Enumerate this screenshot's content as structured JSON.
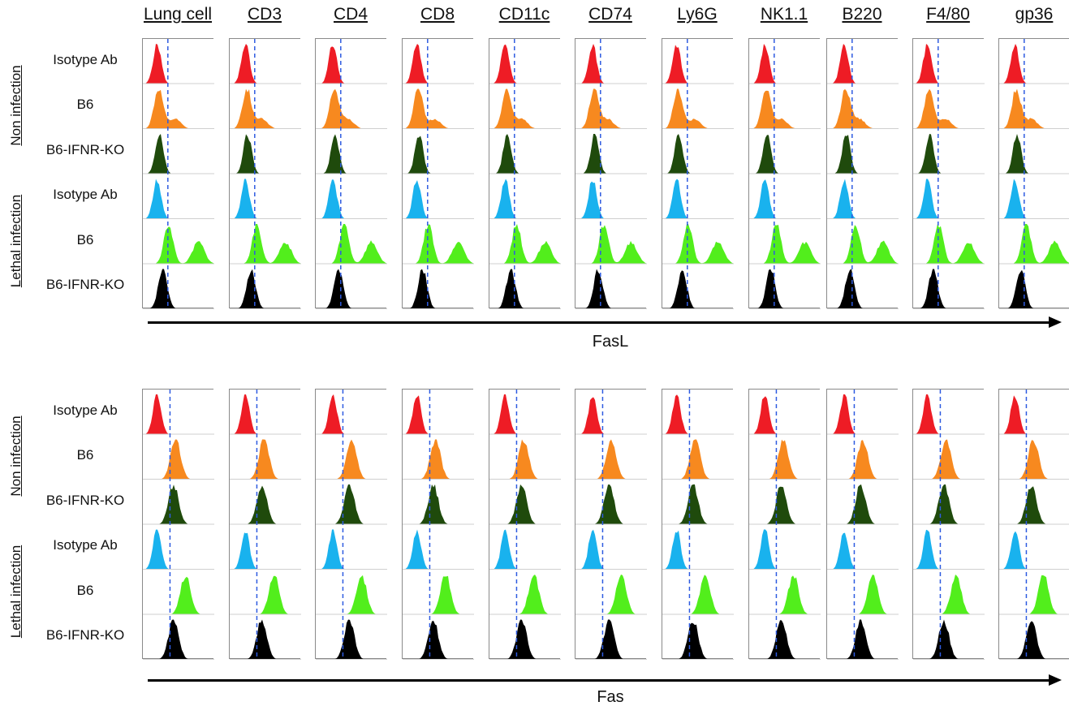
{
  "columns": [
    "Lung cell",
    "CD3",
    "CD4",
    "CD8",
    "CD11c",
    "CD74",
    "Ly6G",
    "NK1.1",
    "B220",
    "F4/80",
    "gp36"
  ],
  "group_labels": [
    "Non infection",
    "Lethal infection"
  ],
  "row_labels": [
    "Isotype Ab",
    "B6",
    "B6-IFNR-KO",
    "Isotype Ab",
    "B6",
    "B6-IFNR-KO"
  ],
  "row_colors": [
    "#ee1c25",
    "#f7891f",
    "#1f4a0c",
    "#19b2ee",
    "#52ee1c",
    "#000000"
  ],
  "panels": [
    {
      "axis_label": "FasL"
    },
    {
      "axis_label": "Fas"
    }
  ]
}
